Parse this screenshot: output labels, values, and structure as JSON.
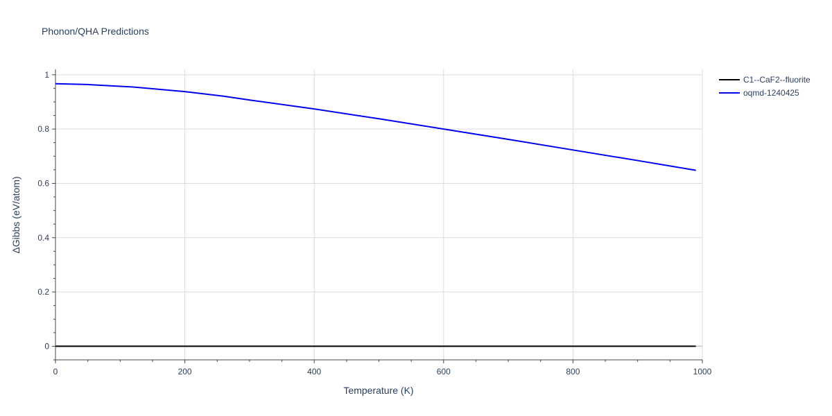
{
  "chart_data": {
    "type": "line",
    "title": "Phonon/QHA Predictions",
    "xlabel": "Temperature (K)",
    "ylabel": "ΔGibbs (eV/atom)",
    "xlim": [
      0,
      1000
    ],
    "ylim": [
      -0.05,
      1.02
    ],
    "xticks": [
      0,
      200,
      400,
      600,
      800,
      1000
    ],
    "xtick_labels": [
      "0",
      "200",
      "400",
      "600",
      "800",
      "1000"
    ],
    "yticks": [
      0,
      0.2,
      0.4,
      0.6,
      0.8,
      1
    ],
    "ytick_labels": [
      "0",
      "0.2",
      "0.4",
      "0.6",
      "0.8",
      "1"
    ],
    "grid": true,
    "legend_position": "top-right",
    "series": [
      {
        "name": "C1--CaF2--fluorite",
        "color": "#000000",
        "x": [
          0,
          990
        ],
        "y": [
          0,
          0
        ]
      },
      {
        "name": "oqmd-1240425",
        "color": "#0000ee",
        "x": [
          0,
          50,
          120,
          200,
          260,
          300,
          370,
          400,
          500,
          600,
          700,
          800,
          900,
          990
        ],
        "y": [
          0.967,
          0.964,
          0.955,
          0.938,
          0.921,
          0.907,
          0.884,
          0.874,
          0.838,
          0.8,
          0.762,
          0.723,
          0.684,
          0.648
        ]
      }
    ]
  }
}
